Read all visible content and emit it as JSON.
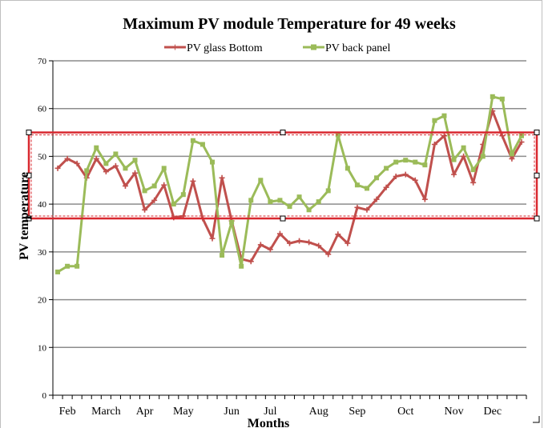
{
  "chart_data": {
    "type": "line",
    "title": "Maximum PV module Temperature for 49 weeks",
    "xlabel": "Months",
    "ylabel": "PV temperature",
    "ylim": [
      0,
      70
    ],
    "yticks": [
      0,
      10,
      20,
      30,
      40,
      50,
      60,
      70
    ],
    "grid": true,
    "legend": "top",
    "month_labels": [
      "Feb",
      "March",
      "Apr",
      "May",
      "Jun",
      "Jul",
      "Aug",
      "Sep",
      "Oct",
      "Nov",
      "Dec"
    ],
    "month_positions": [
      2,
      6,
      10,
      14,
      19,
      23,
      28,
      32,
      37,
      42,
      46
    ],
    "x": [
      1,
      2,
      3,
      4,
      5,
      6,
      7,
      8,
      9,
      10,
      11,
      12,
      13,
      14,
      15,
      16,
      17,
      18,
      19,
      20,
      21,
      22,
      23,
      24,
      25,
      26,
      27,
      28,
      29,
      30,
      31,
      32,
      33,
      34,
      35,
      36,
      37,
      38,
      39,
      40,
      41,
      42,
      43,
      44,
      45,
      46,
      47,
      48,
      49
    ],
    "series": [
      {
        "name": "PV glass Bottom",
        "color": "#c0504d",
        "marker": "plus",
        "values": [
          47.5,
          49.5,
          48.5,
          45.5,
          49.5,
          46.8,
          48,
          43.8,
          46.5,
          38.8,
          40.8,
          44,
          37.2,
          37.5,
          44.8,
          37,
          32.8,
          45.5,
          36.5,
          28.5,
          28,
          31.5,
          30.5,
          33.8,
          31.8,
          32.3,
          32,
          31.3,
          29.5,
          33.7,
          31.8,
          39.3,
          38.8,
          41,
          43.5,
          45.8,
          46.2,
          45,
          41,
          52.5,
          54.3,
          46.2,
          50,
          44.5,
          52.5,
          59.5,
          54.3,
          49.5,
          53
        ]
      },
      {
        "name": "PV back panel",
        "color": "#9bbb59",
        "marker": "square",
        "values": [
          25.8,
          27,
          27,
          47,
          51.8,
          48.5,
          50.5,
          47.5,
          49.2,
          42.8,
          43.8,
          47.5,
          40,
          42,
          53.3,
          52.5,
          48.8,
          29.3,
          36.2,
          27,
          40.8,
          45,
          40.5,
          40.8,
          39.5,
          41.5,
          38.8,
          40.5,
          42.8,
          54.5,
          47.5,
          44,
          43.3,
          45.5,
          47.5,
          48.8,
          49.2,
          48.8,
          48.2,
          57.5,
          58.5,
          49.3,
          51.8,
          47.2,
          50,
          62.5,
          62,
          50.5,
          54.3
        ]
      }
    ],
    "highlight_band": [
      37,
      55
    ],
    "highlight_color": "#d9282f"
  }
}
